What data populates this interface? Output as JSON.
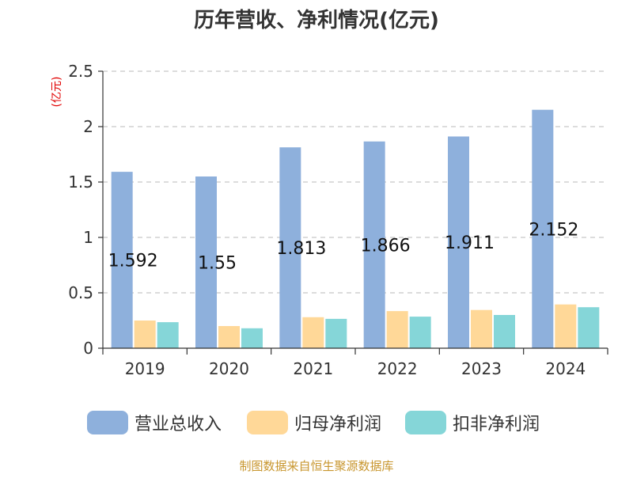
{
  "colors": {
    "revenue": "#8eb0dc",
    "parent_net_profit": "#ffd898",
    "deducted_net_profit": "#85d6d8",
    "unit_label": "#e00000",
    "footer": "#c8962e"
  },
  "footer": "制图数据来自恒生聚源数据库",
  "chart_data": {
    "type": "bar",
    "title": "历年营收、净利情况(亿元)",
    "ylabel": "(亿元)",
    "xlabel": "",
    "ylim": [
      0,
      2.5
    ],
    "yticks": [
      "0",
      "0.5",
      "1",
      "1.5",
      "2",
      "2.5"
    ],
    "grid": true,
    "legend_position": "bottom",
    "categories": [
      "2019",
      "2020",
      "2021",
      "2022",
      "2023",
      "2024"
    ],
    "series": [
      {
        "name": "营业总收入",
        "values": [
          1.592,
          1.55,
          1.813,
          1.866,
          1.911,
          2.152
        ],
        "data_labels": [
          "1.592",
          "1.55",
          "1.813",
          "1.866",
          "1.911",
          "2.152"
        ]
      },
      {
        "name": "归母净利润",
        "values": [
          0.25,
          0.2,
          0.28,
          0.335,
          0.345,
          0.395
        ]
      },
      {
        "name": "扣非净利润",
        "values": [
          0.235,
          0.18,
          0.265,
          0.285,
          0.3,
          0.37
        ]
      }
    ]
  }
}
